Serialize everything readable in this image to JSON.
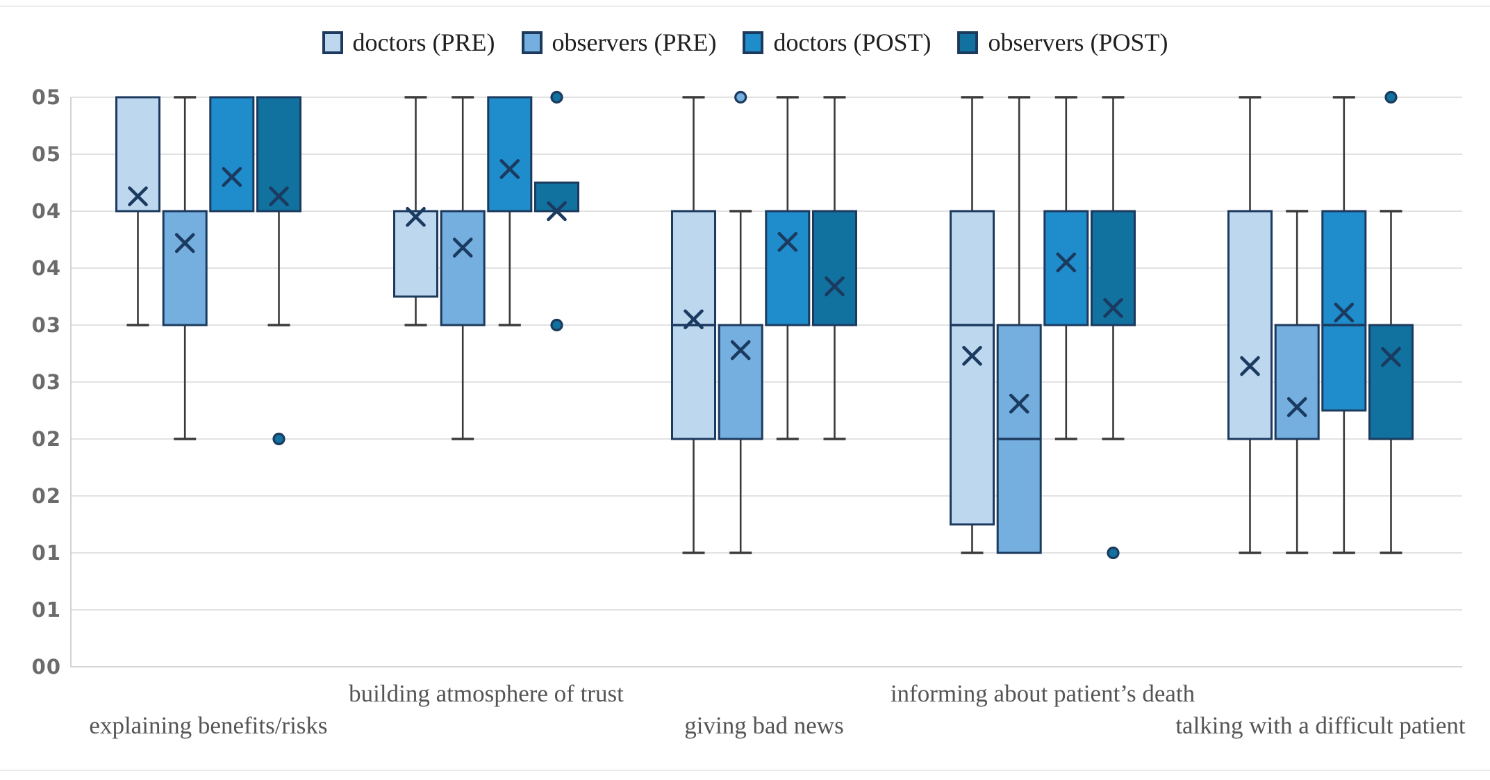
{
  "legend": {
    "items": [
      {
        "label": "doctors (PRE)",
        "color": "#bdd7ee"
      },
      {
        "label": "observers (PRE)",
        "color": "#74afdf"
      },
      {
        "label": "doctors (POST)",
        "color": "#1f8dcb"
      },
      {
        "label": "observers (POST)",
        "color": "#11719f"
      }
    ]
  },
  "chart_data": {
    "type": "boxplot",
    "title": "",
    "xlabel": "",
    "ylabel": "",
    "ylim": [
      0,
      5
    ],
    "ytick_step": 0.5,
    "ytick_labels": [
      "05",
      "05",
      "04",
      "04",
      "03",
      "03",
      "02",
      "02",
      "01",
      "01",
      "00"
    ],
    "grid": true,
    "legend_position": "top-center",
    "series_names": [
      "doctors (PRE)",
      "observers (PRE)",
      "doctors (POST)",
      "observers (POST)"
    ],
    "categories": [
      "explaining benefits/risks",
      "building atmosphere of trust",
      "giving bad news",
      "informing about patient’s death",
      "talking with a difficult patient"
    ],
    "category_label_rows": [
      "lower",
      "upper",
      "lower",
      "upper",
      "lower"
    ],
    "groups": [
      {
        "category": "explaining benefits/risks",
        "boxes": [
          {
            "series": "doctors (PRE)",
            "min": 3,
            "q1": 4,
            "median": null,
            "q3": 5,
            "max": 5,
            "mean": 4.13,
            "outliers": []
          },
          {
            "series": "observers (PRE)",
            "min": 2,
            "q1": 3,
            "median": null,
            "q3": 4,
            "max": 5,
            "mean": 3.72,
            "outliers": []
          },
          {
            "series": "doctors (POST)",
            "min": 4,
            "q1": 4,
            "median": null,
            "q3": 5,
            "max": 5,
            "mean": 4.3,
            "outliers": []
          },
          {
            "series": "observers (POST)",
            "min": 3,
            "q1": 4,
            "median": null,
            "q3": 5,
            "max": 5,
            "mean": 4.13,
            "outliers": [
              2
            ]
          }
        ]
      },
      {
        "category": "building atmosphere of trust",
        "boxes": [
          {
            "series": "doctors (PRE)",
            "min": 3,
            "q1": 3.25,
            "median": null,
            "q3": 4,
            "max": 5,
            "mean": 3.95,
            "outliers": []
          },
          {
            "series": "observers (PRE)",
            "min": 2,
            "q1": 3,
            "median": null,
            "q3": 4,
            "max": 5,
            "mean": 3.68,
            "outliers": []
          },
          {
            "series": "doctors (POST)",
            "min": 3,
            "q1": 4,
            "median": null,
            "q3": 5,
            "max": 5,
            "mean": 4.37,
            "outliers": []
          },
          {
            "series": "observers (POST)",
            "min": 4,
            "q1": 4,
            "median": null,
            "q3": 4.25,
            "max": 4.25,
            "mean": 4.0,
            "outliers": [
              5,
              3
            ]
          }
        ]
      },
      {
        "category": "giving bad news",
        "boxes": [
          {
            "series": "doctors (PRE)",
            "min": 1,
            "q1": 2,
            "median": 3,
            "q3": 4,
            "max": 5,
            "mean": 3.05,
            "outliers": []
          },
          {
            "series": "observers (PRE)",
            "min": 1,
            "q1": 2,
            "median": null,
            "q3": 3,
            "max": 4,
            "mean": 2.78,
            "outliers": [
              5
            ]
          },
          {
            "series": "doctors (POST)",
            "min": 2,
            "q1": 3,
            "median": null,
            "q3": 4,
            "max": 5,
            "mean": 3.73,
            "outliers": []
          },
          {
            "series": "observers (POST)",
            "min": 2,
            "q1": 3,
            "median": null,
            "q3": 4,
            "max": 5,
            "mean": 3.34,
            "outliers": []
          }
        ]
      },
      {
        "category": "informing about patient’s death",
        "boxes": [
          {
            "series": "doctors (PRE)",
            "min": 1,
            "q1": 1.25,
            "median": 3,
            "q3": 4,
            "max": 5,
            "mean": 2.73,
            "outliers": []
          },
          {
            "series": "observers (PRE)",
            "min": 1,
            "q1": 1,
            "median": 2,
            "q3": 3,
            "max": 5,
            "mean": 2.31,
            "outliers": []
          },
          {
            "series": "doctors (POST)",
            "min": 2,
            "q1": 3,
            "median": null,
            "q3": 4,
            "max": 5,
            "mean": 3.55,
            "outliers": []
          },
          {
            "series": "observers (POST)",
            "min": 2,
            "q1": 3,
            "median": null,
            "q3": 4,
            "max": 5,
            "mean": 3.15,
            "outliers": [
              1
            ]
          }
        ]
      },
      {
        "category": "talking with a difficult patient",
        "boxes": [
          {
            "series": "doctors (PRE)",
            "min": 1,
            "q1": 2,
            "median": null,
            "q3": 4,
            "max": 5,
            "mean": 2.64,
            "outliers": []
          },
          {
            "series": "observers (PRE)",
            "min": 1,
            "q1": 2,
            "median": null,
            "q3": 3,
            "max": 4,
            "mean": 2.28,
            "outliers": []
          },
          {
            "series": "doctors (POST)",
            "min": 1,
            "q1": 2.25,
            "median": 3,
            "q3": 4,
            "max": 5,
            "mean": 3.11,
            "outliers": []
          },
          {
            "series": "observers (POST)",
            "min": 1,
            "q1": 2,
            "median": null,
            "q3": 3,
            "max": 4,
            "mean": 2.72,
            "outliers": [
              5
            ]
          }
        ]
      }
    ],
    "style": {
      "box_stroke": "#1c3a5e",
      "whisker_stroke": "#3a3a3a",
      "mean_marker": "x",
      "mean_color": "#1b3a5f",
      "gridline_color": "#d9d9d9",
      "axis_color": "#c8c8c8",
      "tick_color": "#6b6b6b",
      "category_color": "#555555"
    }
  }
}
